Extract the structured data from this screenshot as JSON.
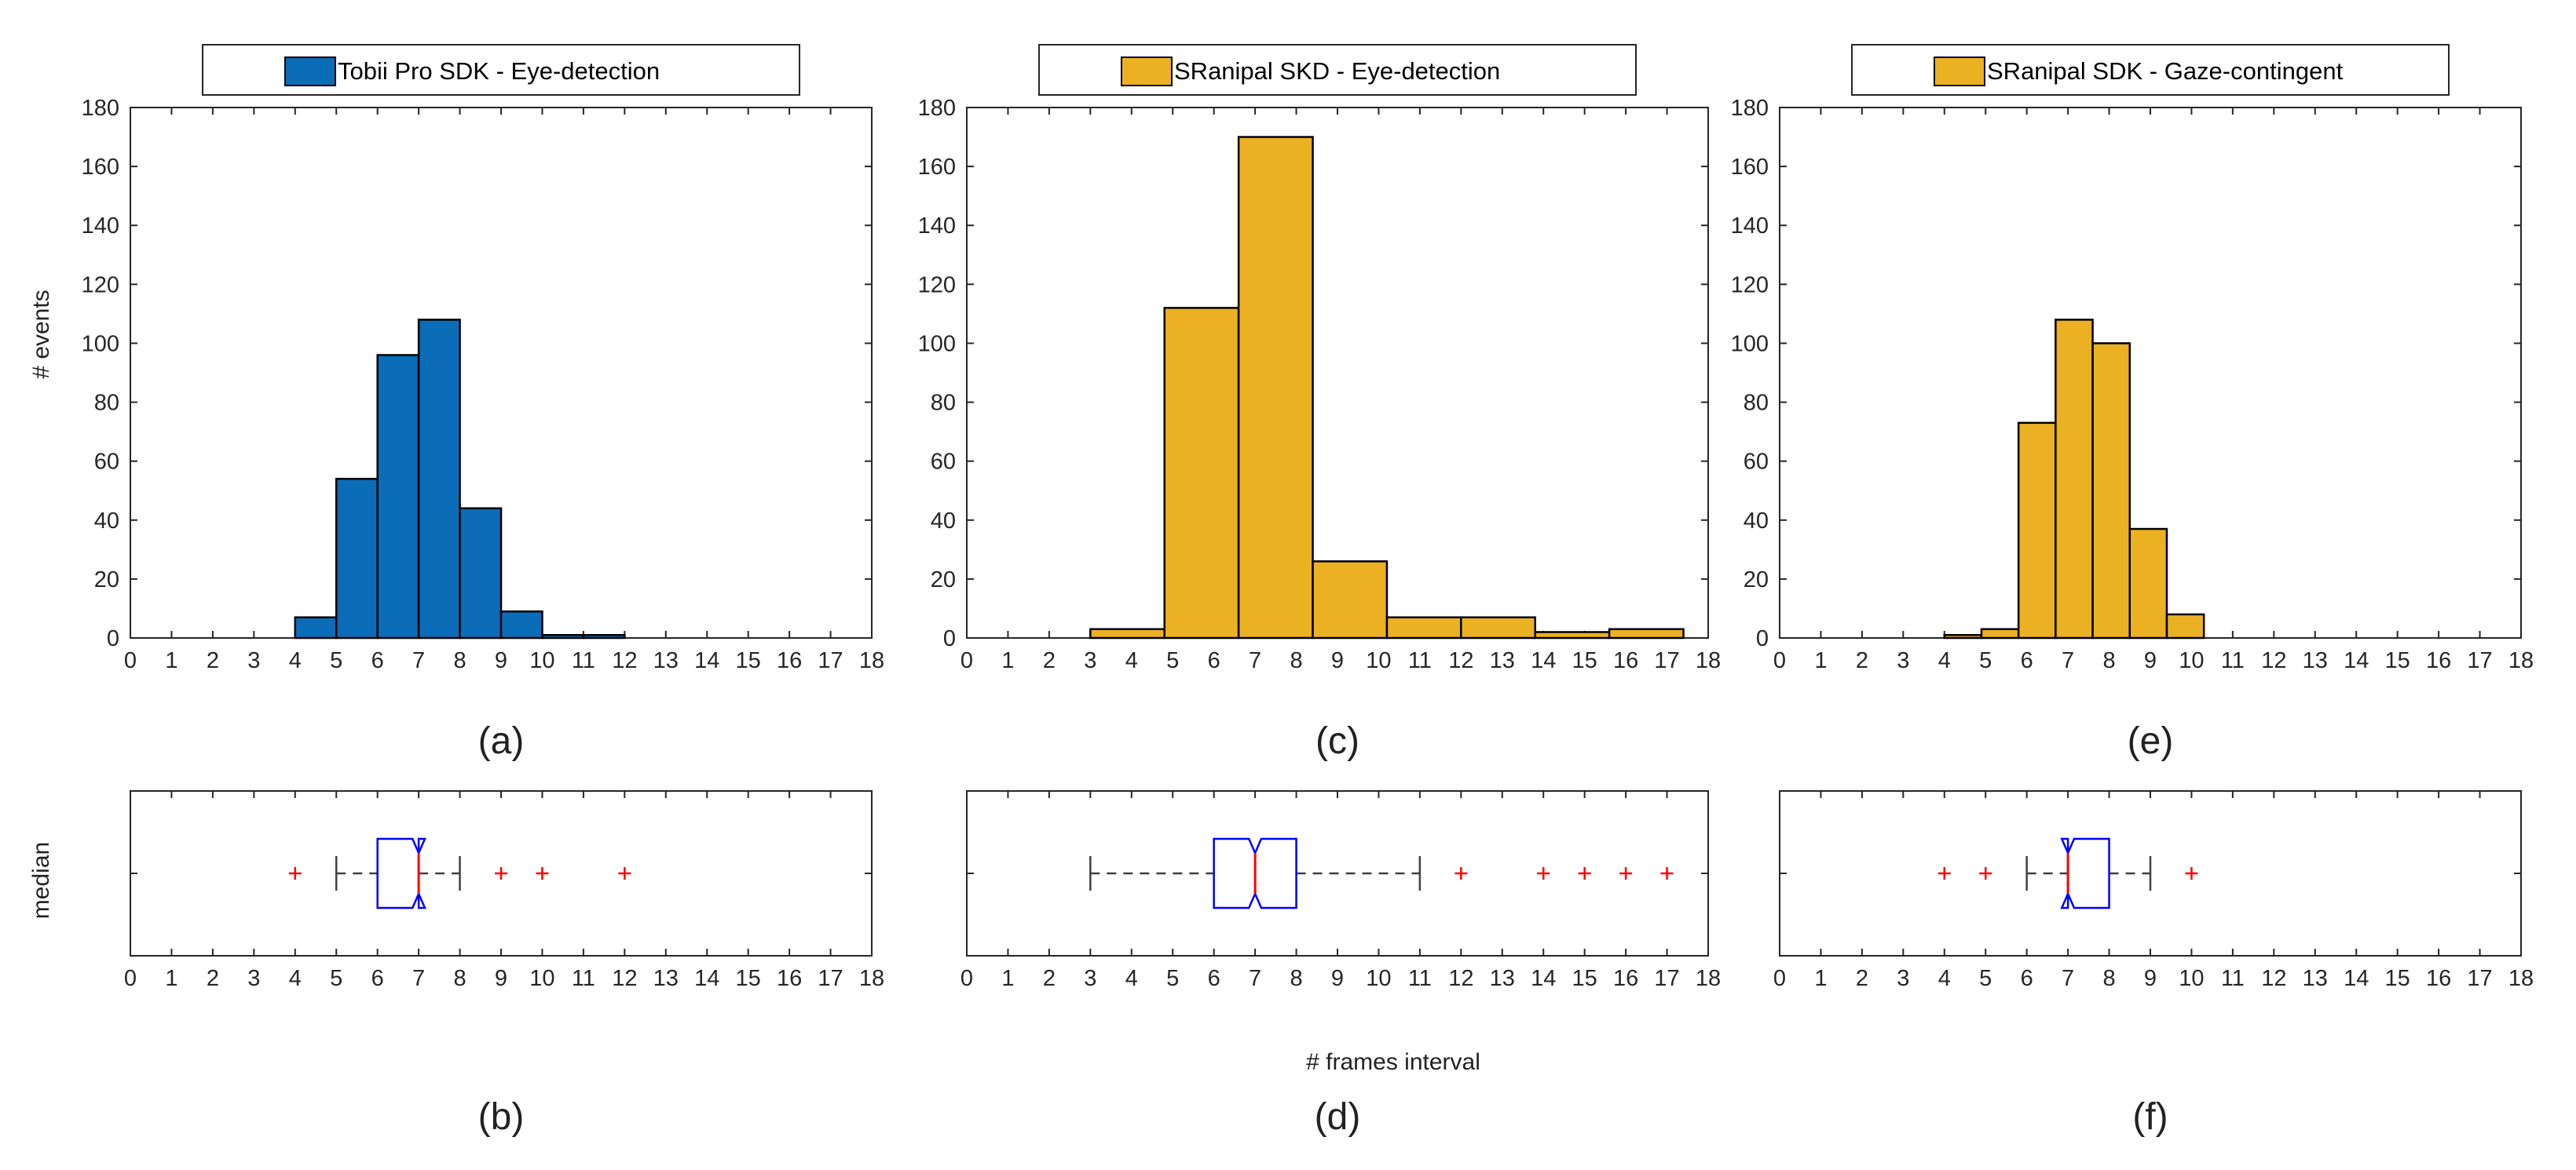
{
  "figure": {
    "hist_ylabel": "# events",
    "box_ylabel": "median",
    "xlabel": "# frames interval"
  },
  "colors": {
    "blue": "#0b6cb8",
    "gold": "#ebb123",
    "box": "#0000ff",
    "median": "#ff0000",
    "outlier": "#ff0000",
    "whisker": "#404040"
  },
  "chart_data": [
    {
      "type": "bar",
      "id": "a",
      "panel_label": "(a)",
      "legend": "Tobii Pro SDK - Eye-detection",
      "color": "#0b6cb8",
      "xlim": [
        0,
        18
      ],
      "ylim": [
        0,
        180
      ],
      "xticks": [
        0,
        1,
        2,
        3,
        4,
        5,
        6,
        7,
        8,
        9,
        10,
        11,
        12,
        13,
        14,
        15,
        16,
        17,
        18
      ],
      "yticks": [
        0,
        20,
        40,
        60,
        80,
        100,
        120,
        140,
        160,
        180
      ],
      "bins": [
        {
          "x0": 4,
          "x1": 5,
          "value": 7
        },
        {
          "x0": 5,
          "x1": 6,
          "value": 54
        },
        {
          "x0": 6,
          "x1": 7,
          "value": 96
        },
        {
          "x0": 7,
          "x1": 8,
          "value": 108
        },
        {
          "x0": 8,
          "x1": 9,
          "value": 44
        },
        {
          "x0": 9,
          "x1": 10,
          "value": 9
        },
        {
          "x0": 10,
          "x1": 11,
          "value": 1
        },
        {
          "x0": 11,
          "x1": 12,
          "value": 1
        }
      ]
    },
    {
      "type": "bar",
      "id": "c",
      "panel_label": "(c)",
      "legend": "SRanipal SKD - Eye-detection",
      "color": "#ebb123",
      "xlim": [
        0,
        18
      ],
      "ylim": [
        0,
        180
      ],
      "xticks": [
        0,
        1,
        2,
        3,
        4,
        5,
        6,
        7,
        8,
        9,
        10,
        11,
        12,
        13,
        14,
        15,
        16,
        17,
        18
      ],
      "yticks": [
        0,
        20,
        40,
        60,
        80,
        100,
        120,
        140,
        160,
        180
      ],
      "bins": [
        {
          "x0": 3.0,
          "x1": 4.8,
          "value": 3
        },
        {
          "x0": 4.8,
          "x1": 6.6,
          "value": 112
        },
        {
          "x0": 6.6,
          "x1": 8.4,
          "value": 170
        },
        {
          "x0": 8.4,
          "x1": 10.2,
          "value": 26
        },
        {
          "x0": 10.2,
          "x1": 12.0,
          "value": 7
        },
        {
          "x0": 12.0,
          "x1": 13.8,
          "value": 7
        },
        {
          "x0": 13.8,
          "x1": 15.6,
          "value": 2
        },
        {
          "x0": 15.6,
          "x1": 17.4,
          "value": 3
        }
      ]
    },
    {
      "type": "bar",
      "id": "e",
      "panel_label": "(e)",
      "legend": "SRanipal SDK - Gaze-contingent",
      "color": "#ebb123",
      "xlim": [
        0,
        18
      ],
      "ylim": [
        0,
        180
      ],
      "xticks": [
        0,
        1,
        2,
        3,
        4,
        5,
        6,
        7,
        8,
        9,
        10,
        11,
        12,
        13,
        14,
        15,
        16,
        17,
        18
      ],
      "yticks": [
        0,
        20,
        40,
        60,
        80,
        100,
        120,
        140,
        160,
        180
      ],
      "bins": [
        {
          "x0": 4.0,
          "x1": 4.9,
          "value": 1
        },
        {
          "x0": 4.9,
          "x1": 5.8,
          "value": 3
        },
        {
          "x0": 5.8,
          "x1": 6.7,
          "value": 73
        },
        {
          "x0": 6.7,
          "x1": 7.6,
          "value": 108
        },
        {
          "x0": 7.6,
          "x1": 8.5,
          "value": 100
        },
        {
          "x0": 8.5,
          "x1": 9.4,
          "value": 37
        },
        {
          "x0": 9.4,
          "x1": 10.3,
          "value": 8
        }
      ]
    },
    {
      "type": "boxplot",
      "id": "b",
      "panel_label": "(b)",
      "xlim": [
        0,
        18
      ],
      "xticks": [
        0,
        1,
        2,
        3,
        4,
        5,
        6,
        7,
        8,
        9,
        10,
        11,
        12,
        13,
        14,
        15,
        16,
        17,
        18
      ],
      "whisker_low": 5,
      "q1": 6,
      "median": 7,
      "q3": 7,
      "whisker_high": 8,
      "notch_low": 6.85,
      "notch_high": 7.15,
      "outliers": [
        4,
        9,
        10,
        12
      ]
    },
    {
      "type": "boxplot",
      "id": "d",
      "panel_label": "(d)",
      "xlim": [
        0,
        18
      ],
      "xticks": [
        0,
        1,
        2,
        3,
        4,
        5,
        6,
        7,
        8,
        9,
        10,
        11,
        12,
        13,
        14,
        15,
        16,
        17,
        18
      ],
      "whisker_low": 3,
      "q1": 6,
      "median": 7,
      "q3": 8,
      "whisker_high": 11,
      "notch_low": 6.85,
      "notch_high": 7.15,
      "outliers": [
        12,
        14,
        15,
        16,
        17
      ]
    },
    {
      "type": "boxplot",
      "id": "f",
      "panel_label": "(f)",
      "xlim": [
        0,
        18
      ],
      "xticks": [
        0,
        1,
        2,
        3,
        4,
        5,
        6,
        7,
        8,
        9,
        10,
        11,
        12,
        13,
        14,
        15,
        16,
        17,
        18
      ],
      "whisker_low": 6,
      "q1": 7,
      "median": 7,
      "q3": 8,
      "whisker_high": 9,
      "notch_low": 6.85,
      "notch_high": 7.15,
      "outliers": [
        4,
        5,
        10
      ]
    }
  ]
}
